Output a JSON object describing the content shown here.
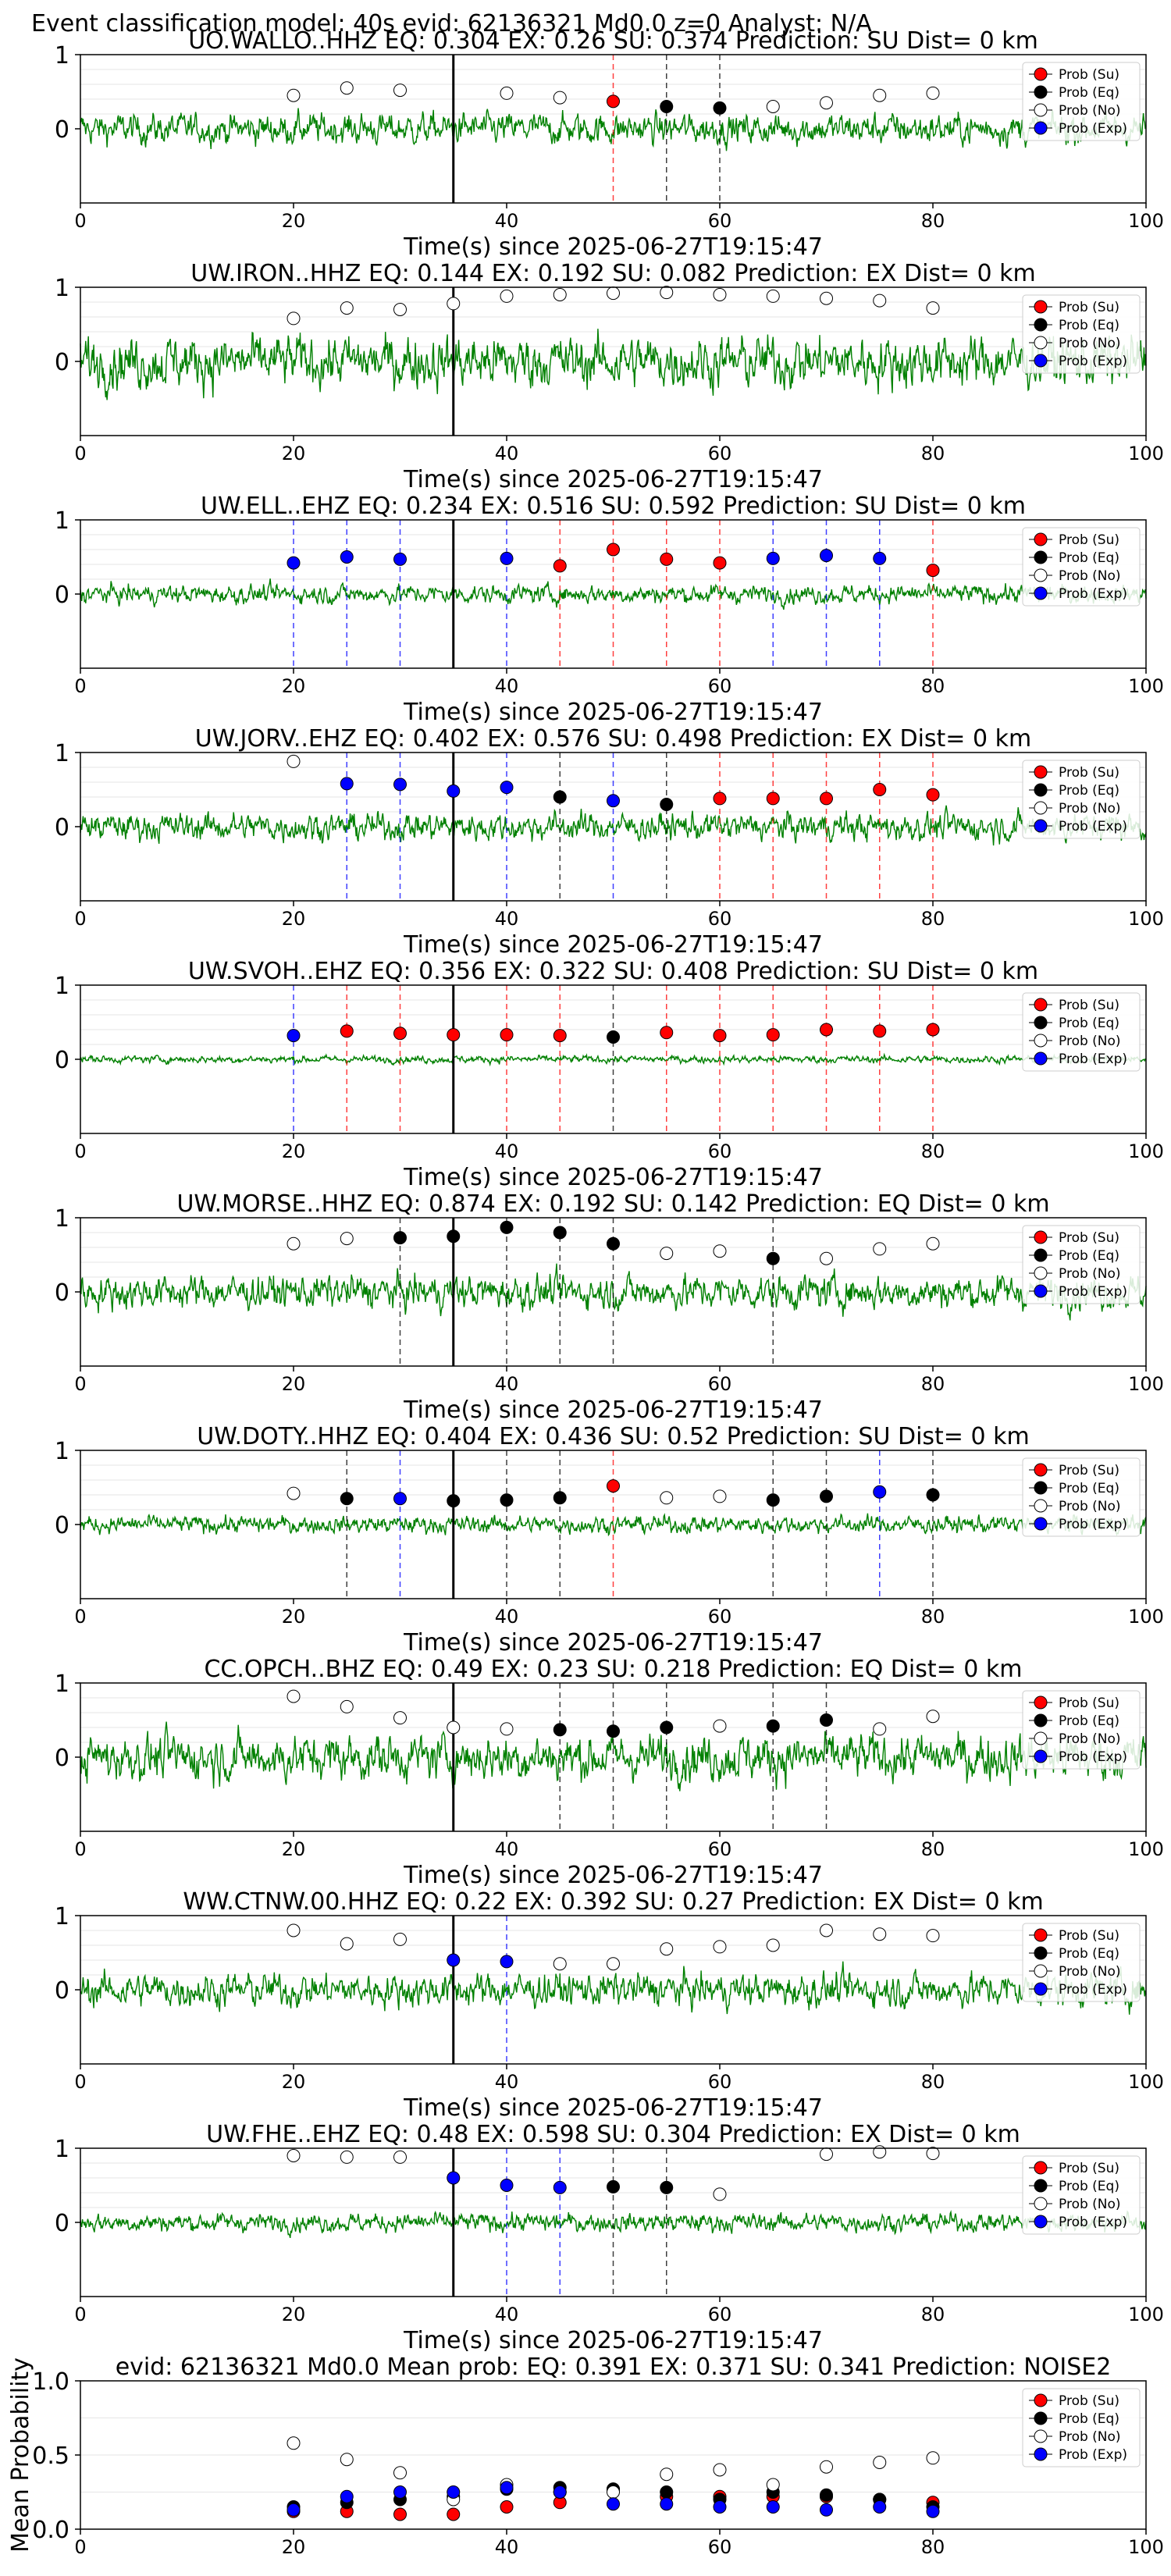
{
  "figure_title": "Event classification model: 40s evid: 62136321 Md0.0 z=0 Analyst: N/A",
  "colors": {
    "waveform": "#008000",
    "su": "#ff0000",
    "eq": "#000000",
    "no": "#ffffff",
    "exp": "#0000ff",
    "su_line": "#ff0000",
    "eq_line": "#000000",
    "exp_line": "#0000ff",
    "origin_line": "#000000"
  },
  "legend": [
    "Prob (Su)",
    "Prob (Eq)",
    "Prob (No)",
    "Prob (Exp)"
  ],
  "chart_data": [
    {
      "type": "line",
      "station": "UO.WALLO..HHZ",
      "title": "UO.WALLO..HHZ   EQ: 0.304  EX: 0.26  SU: 0.374   Prediction: SU    Dist= 0 km",
      "xlabel": "Time(s) since 2025-06-27T19:15:47",
      "ylabel": "",
      "xlim": [
        0,
        100
      ],
      "ylim": [
        -1,
        1
      ],
      "xticks": [
        "0",
        "20",
        "40",
        "60",
        "80",
        "100"
      ],
      "yticks": [
        "1",
        "0"
      ],
      "origin_time": 35,
      "amp": 0.5,
      "windows": [
        20,
        25,
        30,
        40,
        45,
        50,
        55,
        60,
        65,
        70,
        75,
        80
      ],
      "classes": [
        "no",
        "no",
        "no",
        "no",
        "no",
        "su",
        "eq",
        "eq",
        "no",
        "no",
        "no",
        "no"
      ],
      "probs": [
        0.45,
        0.55,
        0.52,
        0.48,
        0.42,
        0.37,
        0.3,
        0.28,
        0.3,
        0.35,
        0.45,
        0.48
      ]
    },
    {
      "type": "line",
      "station": "UW.IRON..HHZ",
      "title": "UW.IRON..HHZ   EQ: 0.144  EX: 0.192  SU: 0.082   Prediction: EX    Dist= 0 km",
      "xlabel": "Time(s) since 2025-06-27T19:15:47",
      "ylabel": "",
      "xlim": [
        0,
        100
      ],
      "ylim": [
        -1,
        1
      ],
      "xticks": [
        "0",
        "20",
        "40",
        "60",
        "80",
        "100"
      ],
      "yticks": [
        "1",
        "0"
      ],
      "origin_time": 35,
      "amp": 0.85,
      "windows": [
        20,
        25,
        30,
        35,
        40,
        45,
        50,
        55,
        60,
        65,
        70,
        75,
        80
      ],
      "classes": [
        "no",
        "no",
        "no",
        "no",
        "no",
        "no",
        "no",
        "no",
        "no",
        "no",
        "no",
        "no",
        "no"
      ],
      "probs": [
        0.58,
        0.72,
        0.7,
        0.78,
        0.88,
        0.9,
        0.92,
        0.93,
        0.9,
        0.88,
        0.85,
        0.82,
        0.72
      ]
    },
    {
      "type": "line",
      "station": "UW.ELL..EHZ",
      "title": "UW.ELL..EHZ   EQ: 0.234  EX: 0.516  SU: 0.592   Prediction: SU    Dist= 0 km",
      "xlabel": "Time(s) since 2025-06-27T19:15:47",
      "ylabel": "",
      "xlim": [
        0,
        100
      ],
      "ylim": [
        -1,
        1
      ],
      "xticks": [
        "0",
        "20",
        "40",
        "60",
        "80",
        "100"
      ],
      "yticks": [
        "1",
        "0"
      ],
      "origin_time": 35,
      "amp": 0.3,
      "windows": [
        20,
        25,
        30,
        40,
        45,
        50,
        55,
        60,
        65,
        70,
        75,
        80
      ],
      "classes": [
        "exp",
        "exp",
        "exp",
        "exp",
        "su",
        "su",
        "su",
        "su",
        "exp",
        "exp",
        "exp",
        "su"
      ],
      "probs": [
        0.42,
        0.5,
        0.47,
        0.48,
        0.38,
        0.6,
        0.47,
        0.42,
        0.48,
        0.52,
        0.48,
        0.32
      ]
    },
    {
      "type": "line",
      "station": "UW.JORV..EHZ",
      "title": "UW.JORV..EHZ   EQ: 0.402  EX: 0.576  SU: 0.498   Prediction: EX    Dist= 0 km",
      "xlabel": "Time(s) since 2025-06-27T19:15:47",
      "ylabel": "",
      "xlim": [
        0,
        100
      ],
      "ylim": [
        -1,
        1
      ],
      "xticks": [
        "0",
        "20",
        "40",
        "60",
        "80",
        "100"
      ],
      "yticks": [
        "1",
        "0"
      ],
      "origin_time": 35,
      "amp": 0.45,
      "windows": [
        20,
        25,
        30,
        35,
        40,
        45,
        50,
        55,
        60,
        65,
        70,
        75,
        80
      ],
      "classes": [
        "no",
        "exp",
        "exp",
        "exp",
        "exp",
        "eq",
        "exp",
        "eq",
        "su",
        "su",
        "su",
        "su",
        "su"
      ],
      "probs": [
        0.88,
        0.58,
        0.57,
        0.48,
        0.53,
        0.4,
        0.35,
        0.3,
        0.38,
        0.38,
        0.38,
        0.5,
        0.43
      ]
    },
    {
      "type": "line",
      "station": "UW.SVOH..EHZ",
      "title": "UW.SVOH..EHZ   EQ: 0.356  EX: 0.322  SU: 0.408   Prediction: SU    Dist= 0 km",
      "xlabel": "Time(s) since 2025-06-27T19:15:47",
      "ylabel": "",
      "xlim": [
        0,
        100
      ],
      "ylim": [
        -1,
        1
      ],
      "xticks": [
        "0",
        "20",
        "40",
        "60",
        "80",
        "100"
      ],
      "yticks": [
        "1",
        "0"
      ],
      "origin_time": 35,
      "amp": 0.12,
      "windows": [
        20,
        25,
        30,
        35,
        40,
        45,
        50,
        55,
        60,
        65,
        70,
        75,
        80
      ],
      "classes": [
        "exp",
        "su",
        "su",
        "su",
        "su",
        "su",
        "eq",
        "su",
        "su",
        "su",
        "su",
        "su",
        "su"
      ],
      "probs": [
        0.32,
        0.38,
        0.35,
        0.33,
        0.33,
        0.32,
        0.3,
        0.36,
        0.32,
        0.33,
        0.4,
        0.38,
        0.4
      ]
    },
    {
      "type": "line",
      "station": "UW.MORSE..HHZ",
      "title": "UW.MORSE..HHZ   EQ: 0.874  EX: 0.192  SU: 0.142   Prediction: EQ    Dist= 0 km",
      "xlabel": "Time(s) since 2025-06-27T19:15:47",
      "ylabel": "",
      "xlim": [
        0,
        100
      ],
      "ylim": [
        -1,
        1
      ],
      "xticks": [
        "0",
        "20",
        "40",
        "60",
        "80",
        "100"
      ],
      "yticks": [
        "1",
        "0"
      ],
      "origin_time": 35,
      "amp": 0.55,
      "windows": [
        20,
        25,
        30,
        35,
        40,
        45,
        50,
        55,
        60,
        65,
        70,
        75,
        80
      ],
      "classes": [
        "no",
        "no",
        "eq",
        "eq",
        "eq",
        "eq",
        "eq",
        "no",
        "no",
        "eq",
        "no",
        "no",
        "no"
      ],
      "probs": [
        0.65,
        0.72,
        0.73,
        0.75,
        0.87,
        0.8,
        0.65,
        0.52,
        0.55,
        0.45,
        0.45,
        0.58,
        0.65
      ]
    },
    {
      "type": "line",
      "station": "UW.DOTY..HHZ",
      "title": "UW.DOTY..HHZ   EQ: 0.404  EX: 0.436  SU: 0.52   Prediction: SU    Dist= 0 km",
      "xlabel": "Time(s) since 2025-06-27T19:15:47",
      "ylabel": "",
      "xlim": [
        0,
        100
      ],
      "ylim": [
        -1,
        1
      ],
      "xticks": [
        "0",
        "20",
        "40",
        "60",
        "80",
        "100"
      ],
      "yticks": [
        "1",
        "0"
      ],
      "origin_time": 35,
      "amp": 0.28,
      "windows": [
        20,
        25,
        30,
        35,
        40,
        45,
        50,
        55,
        60,
        65,
        70,
        75,
        80
      ],
      "classes": [
        "no",
        "eq",
        "exp",
        "eq",
        "eq",
        "eq",
        "su",
        "no",
        "no",
        "eq",
        "eq",
        "exp",
        "eq"
      ],
      "probs": [
        0.42,
        0.35,
        0.35,
        0.32,
        0.33,
        0.36,
        0.52,
        0.36,
        0.38,
        0.33,
        0.38,
        0.44,
        0.4
      ]
    },
    {
      "type": "line",
      "station": "CC.OPCH..BHZ",
      "title": "CC.OPCH..BHZ   EQ: 0.49  EX: 0.23  SU: 0.218   Prediction: EQ    Dist= 0 km",
      "xlabel": "Time(s) since 2025-06-27T19:15:47",
      "ylabel": "",
      "xlim": [
        0,
        100
      ],
      "ylim": [
        -1,
        1
      ],
      "xticks": [
        "0",
        "20",
        "40",
        "60",
        "80",
        "100"
      ],
      "yticks": [
        "1",
        "0"
      ],
      "origin_time": 35,
      "amp": 0.75,
      "windows": [
        20,
        25,
        30,
        35,
        40,
        45,
        50,
        55,
        60,
        65,
        70,
        75,
        80
      ],
      "classes": [
        "no",
        "no",
        "no",
        "no",
        "no",
        "eq",
        "eq",
        "eq",
        "no",
        "eq",
        "eq",
        "no",
        "no"
      ],
      "probs": [
        0.82,
        0.68,
        0.53,
        0.4,
        0.38,
        0.37,
        0.35,
        0.4,
        0.42,
        0.42,
        0.5,
        0.38,
        0.55
      ]
    },
    {
      "type": "line",
      "station": "WW.CTNW.00.HHZ",
      "title": "WW.CTNW.00.HHZ   EQ: 0.22  EX: 0.392  SU: 0.27   Prediction: EX    Dist= 0 km",
      "xlabel": "Time(s) since 2025-06-27T19:15:47",
      "ylabel": "",
      "xlim": [
        0,
        100
      ],
      "ylim": [
        -1,
        1
      ],
      "xticks": [
        "0",
        "20",
        "40",
        "60",
        "80",
        "100"
      ],
      "yticks": [
        "1",
        "0"
      ],
      "origin_time": 35,
      "amp": 0.55,
      "windows": [
        20,
        25,
        30,
        35,
        40,
        45,
        50,
        55,
        60,
        65,
        70,
        75,
        80
      ],
      "classes": [
        "no",
        "no",
        "no",
        "exp",
        "exp",
        "no",
        "no",
        "no",
        "no",
        "no",
        "no",
        "no",
        "no"
      ],
      "probs": [
        0.8,
        0.62,
        0.68,
        0.4,
        0.38,
        0.35,
        0.35,
        0.55,
        0.58,
        0.6,
        0.8,
        0.75,
        0.73
      ]
    },
    {
      "type": "line",
      "station": "UW.FHE..EHZ",
      "title": "UW.FHE..EHZ   EQ: 0.48  EX: 0.598  SU: 0.304   Prediction: EX    Dist= 0 km",
      "xlabel": "Time(s) since 2025-06-27T19:15:47",
      "ylabel": "",
      "xlim": [
        0,
        100
      ],
      "ylim": [
        -1,
        1
      ],
      "xticks": [
        "0",
        "20",
        "40",
        "60",
        "80",
        "100"
      ],
      "yticks": [
        "1",
        "0"
      ],
      "origin_time": 35,
      "amp": 0.3,
      "windows": [
        20,
        25,
        30,
        35,
        40,
        45,
        50,
        55,
        60,
        70,
        75,
        80
      ],
      "classes": [
        "no",
        "no",
        "no",
        "exp",
        "exp",
        "exp",
        "eq",
        "eq",
        "no",
        "no",
        "no",
        "no"
      ],
      "probs": [
        0.9,
        0.88,
        0.88,
        0.6,
        0.5,
        0.47,
        0.48,
        0.47,
        0.38,
        0.92,
        0.95,
        0.93
      ]
    },
    {
      "type": "scatter",
      "station": "mean",
      "title": "evid: 62136321  Md0.0   Mean prob:   EQ: 0.391  EX: 0.371  SU: 0.341   Prediction: NOISE2",
      "xlabel": "",
      "ylabel": "Mean Probability",
      "xlim": [
        0,
        100
      ],
      "ylim": [
        0,
        1
      ],
      "xticks": [
        "0",
        "20",
        "40",
        "60",
        "80",
        "100"
      ],
      "yticks": [
        "1.0",
        "0.5",
        "0.0"
      ],
      "x": [
        20,
        25,
        30,
        35,
        40,
        45,
        50,
        55,
        60,
        65,
        70,
        75,
        80
      ],
      "series": [
        {
          "name": "Prob (Su)",
          "values": [
            0.12,
            0.12,
            0.1,
            0.1,
            0.15,
            0.18,
            0.27,
            0.22,
            0.22,
            0.22,
            0.22,
            0.2,
            0.18
          ]
        },
        {
          "name": "Prob (Eq)",
          "values": [
            0.15,
            0.18,
            0.2,
            0.22,
            0.27,
            0.28,
            0.27,
            0.25,
            0.2,
            0.25,
            0.23,
            0.2,
            0.15
          ]
        },
        {
          "name": "Prob (No)",
          "values": [
            0.58,
            0.47,
            0.38,
            0.2,
            0.3,
            0.25,
            0.25,
            0.37,
            0.4,
            0.3,
            0.42,
            0.45,
            0.48
          ]
        },
        {
          "name": "Prob (Exp)",
          "values": [
            0.13,
            0.22,
            0.25,
            0.25,
            0.28,
            0.25,
            0.17,
            0.17,
            0.15,
            0.15,
            0.13,
            0.15,
            0.12
          ]
        }
      ]
    }
  ]
}
